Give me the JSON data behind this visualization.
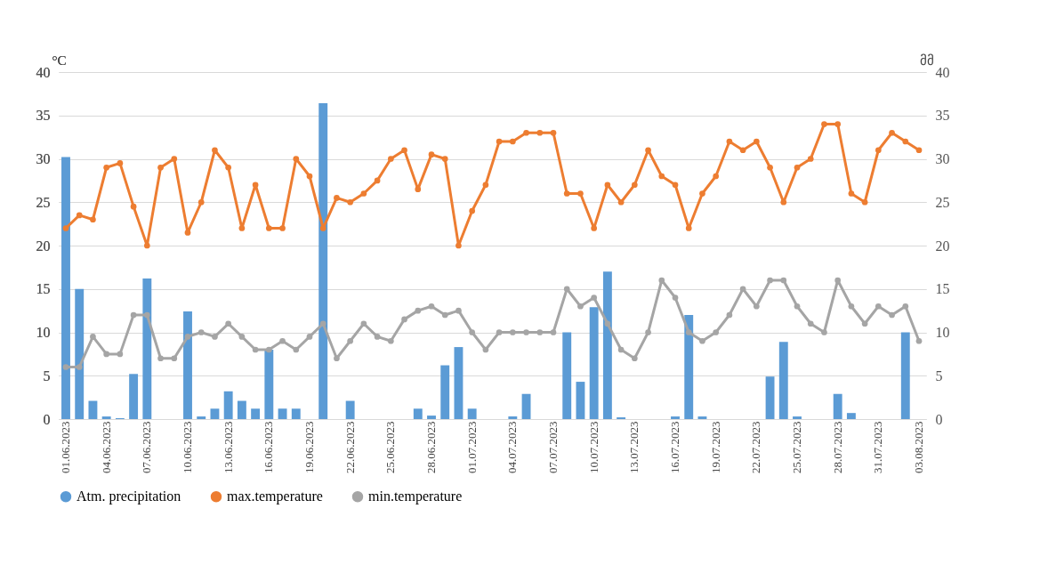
{
  "chart_data": {
    "type": "line",
    "ylabel": "°C",
    "y2label": "მმ",
    "grid": "y",
    "legend": "bottom",
    "marker": "circle",
    "categories": [
      "01.06.2023",
      null,
      null,
      "04.06.2023",
      null,
      null,
      "07.06.2023",
      null,
      null,
      "10.06.2023",
      null,
      null,
      "13.06.2023",
      null,
      null,
      "16.06.2023",
      null,
      null,
      "19.06.2023",
      null,
      null,
      "22.06.2023",
      null,
      null,
      "25.06.2023",
      null,
      null,
      "28.06.2023",
      null,
      null,
      "01.07.2023",
      null,
      null,
      "04.07.2023",
      null,
      null,
      "07.07.2023",
      null,
      null,
      "10.07.2023",
      null,
      null,
      "13.07.2023",
      null,
      null,
      "16.07.2023",
      null,
      null,
      "19.07.2023",
      null,
      null,
      "22.07.2023",
      null,
      null,
      "25.07.2023",
      null,
      null,
      "28.07.2023",
      null,
      null,
      "31.07.2023",
      null,
      null,
      "03.08.2023"
    ],
    "series": [
      {
        "name": "Atm. precipitation",
        "type": "bar",
        "axis": "y2",
        "color": "#5b9bd5",
        "values": [
          30.2,
          15,
          2.1,
          0.3,
          0.1,
          5.2,
          16.2,
          0,
          0,
          12.4,
          0.3,
          1.2,
          3.2,
          2.1,
          1.2,
          8,
          1.2,
          1.2,
          0,
          36.4,
          0,
          2.1,
          0,
          0,
          0,
          0,
          1.2,
          0.4,
          6.2,
          8.3,
          1.2,
          0,
          0,
          0.3,
          2.9,
          0,
          0,
          10,
          4.3,
          12.9,
          17,
          0.2,
          0,
          0,
          0,
          0.3,
          12,
          0.3,
          0,
          0,
          0,
          0,
          4.9,
          8.9,
          0.3,
          0,
          0,
          2.9,
          0.7,
          0,
          0,
          0,
          10,
          0
        ]
      },
      {
        "name": "max.temperature",
        "color": "#ed7d31",
        "values": [
          22,
          23.5,
          23,
          29,
          29.5,
          24.5,
          20,
          29,
          30,
          21.5,
          25,
          31,
          29,
          22,
          27,
          22,
          22,
          30,
          28,
          22,
          25.5,
          25,
          26,
          27.5,
          30,
          31,
          26.5,
          30.5,
          30,
          20,
          24,
          27,
          32,
          32,
          33,
          33,
          33,
          26,
          26,
          22,
          27,
          25,
          27,
          31,
          28,
          27,
          22,
          26,
          28,
          32,
          31,
          32,
          29,
          25,
          29,
          30,
          34,
          34,
          26,
          25,
          31,
          33,
          32,
          31
        ]
      },
      {
        "name": "min.temperature",
        "color": "#a5a5a5",
        "values": [
          6,
          6,
          9.5,
          7.5,
          7.5,
          12,
          12,
          7,
          7,
          9.5,
          10,
          9.5,
          11,
          9.5,
          8,
          8,
          9,
          8,
          9.5,
          11,
          7,
          9,
          11,
          9.5,
          9,
          11.5,
          12.5,
          13,
          12,
          12.5,
          10,
          8,
          10,
          10,
          10,
          10,
          10,
          15,
          13,
          14,
          11,
          8,
          7,
          10,
          16,
          14,
          10,
          9,
          10,
          12,
          15,
          13,
          16,
          16,
          13,
          11,
          10,
          16,
          13,
          11,
          13,
          12,
          13,
          9
        ]
      }
    ],
    "ylim": [
      0,
      40
    ],
    "yticks": [
      0,
      5,
      10,
      15,
      20,
      25,
      30,
      35,
      40
    ],
    "y2lim": [
      0,
      40
    ],
    "y2ticks": [
      0,
      5,
      10,
      15,
      20,
      25,
      30,
      35,
      40
    ]
  }
}
